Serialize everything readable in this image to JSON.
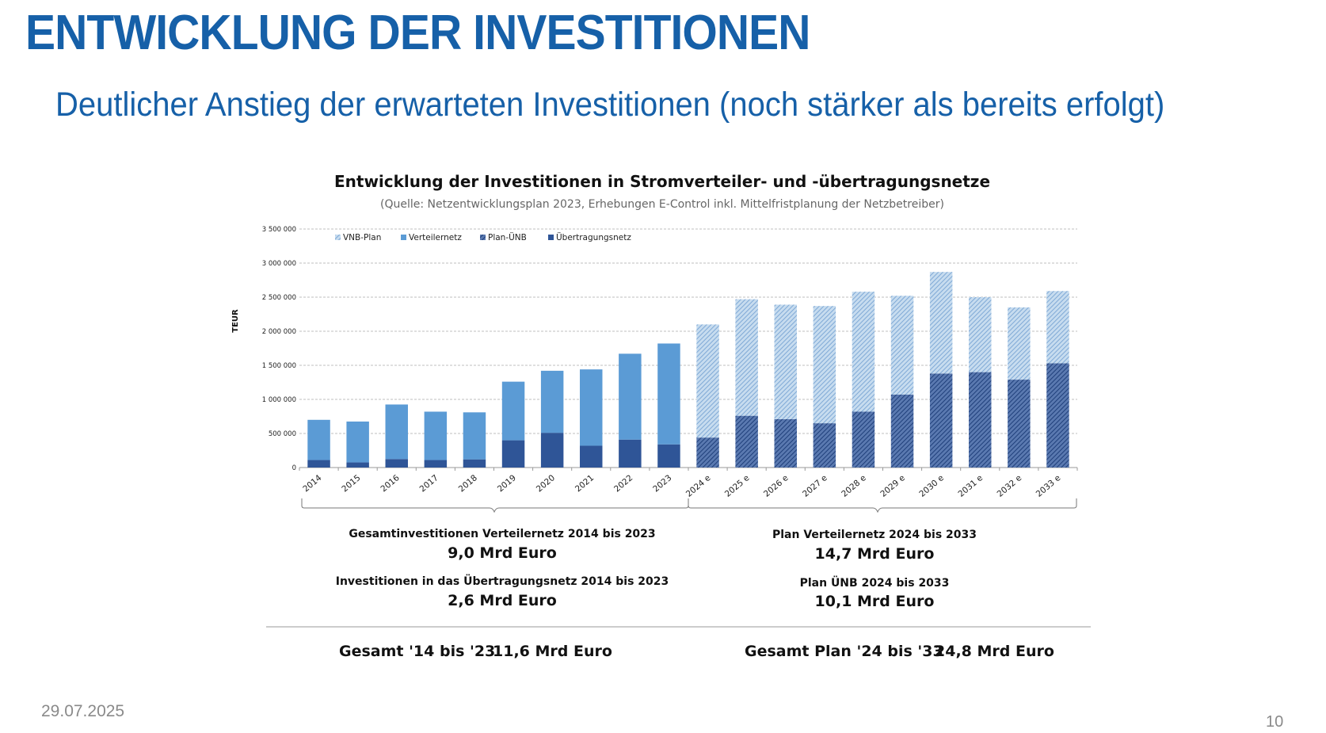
{
  "slide": {
    "title": "ENTWICKLUNG DER INVESTITIONEN",
    "subtitle": "Deutlicher Anstieg der erwarteten Investitionen (noch stärker als bereits erfolgt)",
    "date": "29.07.2025",
    "page": "10"
  },
  "summary": {
    "left": [
      {
        "label": "Gesamtinvestitionen Verteilernetz 2014 bis 2023",
        "value": "9,0 Mrd Euro"
      },
      {
        "label": "Investitionen in das Übertragungsnetz 2014 bis 2023",
        "value": "2,6 Mrd Euro"
      }
    ],
    "right": [
      {
        "label": "Plan Verteilernetz 2024 bis 2033",
        "value": "14,7 Mrd Euro"
      },
      {
        "label": "Plan ÜNB 2024 bis 2033",
        "value": "10,1 Mrd Euro"
      }
    ],
    "total_left_label": "Gesamt '14 bis '23",
    "total_left_value": "11,6 Mrd Euro",
    "total_right_label": "Gesamt Plan '24 bis '33",
    "total_right_value": "24,8 Mrd Euro"
  },
  "colors": {
    "title": "#1660a8",
    "verteilernetz": "#5b9bd5",
    "uebertragungsnetz": "#2f5597",
    "vnb_plan": "#9dc3e6",
    "plan_uenb": "#2f5597"
  },
  "chart_data": {
    "type": "bar",
    "stacked": true,
    "title": "Entwicklung der Investitionen in Stromverteiler- und -übertragungsnetze",
    "subtitle": "(Quelle: Netzentwicklungsplan 2023, Erhebungen E-Control inkl. Mittelfristplanung der Netzbetreiber)",
    "ylabel": "TEUR",
    "ylim": [
      0,
      3500000
    ],
    "yticks": [
      0,
      500000,
      1000000,
      1500000,
      2000000,
      2500000,
      3000000,
      3500000
    ],
    "ytick_labels": [
      "0",
      "500 000",
      "1 000 000",
      "1 500 000",
      "2 000 000",
      "2 500 000",
      "3 000 000",
      "3 500 000"
    ],
    "grid": true,
    "legend_position": "top-left",
    "categories": [
      "2014",
      "2015",
      "2016",
      "2017",
      "2018",
      "2019",
      "2020",
      "2021",
      "2022",
      "2023",
      "2024 e",
      "2025 e",
      "2026 e",
      "2027 e",
      "2028 e",
      "2029 e",
      "2030 e",
      "2031 e",
      "2032 e",
      "2033 e"
    ],
    "legend": [
      "VNB-Plan",
      "Verteilernetz",
      "Plan-ÜNB",
      "Übertragungsnetz"
    ],
    "series": [
      {
        "name": "Übertragungsnetz",
        "pattern": "solid-dark",
        "values": [
          110000,
          75000,
          125000,
          110000,
          120000,
          400000,
          510000,
          320000,
          410000,
          340000,
          null,
          null,
          null,
          null,
          null,
          null,
          null,
          null,
          null,
          null
        ]
      },
      {
        "name": "Verteilernetz",
        "pattern": "solid-light",
        "values": [
          590000,
          600000,
          800000,
          710000,
          690000,
          860000,
          910000,
          1120000,
          1260000,
          1480000,
          null,
          null,
          null,
          null,
          null,
          null,
          null,
          null,
          null,
          null
        ]
      },
      {
        "name": "Plan-ÜNB",
        "pattern": "hatched-dark",
        "values": [
          null,
          null,
          null,
          null,
          null,
          null,
          null,
          null,
          null,
          null,
          440000,
          760000,
          710000,
          650000,
          820000,
          1070000,
          1380000,
          1400000,
          1290000,
          1530000
        ]
      },
      {
        "name": "VNB-Plan",
        "pattern": "hatched-light",
        "values": [
          null,
          null,
          null,
          null,
          null,
          null,
          null,
          null,
          null,
          null,
          1660000,
          1710000,
          1680000,
          1720000,
          1760000,
          1450000,
          1490000,
          1100000,
          1060000,
          1060000
        ]
      }
    ]
  }
}
